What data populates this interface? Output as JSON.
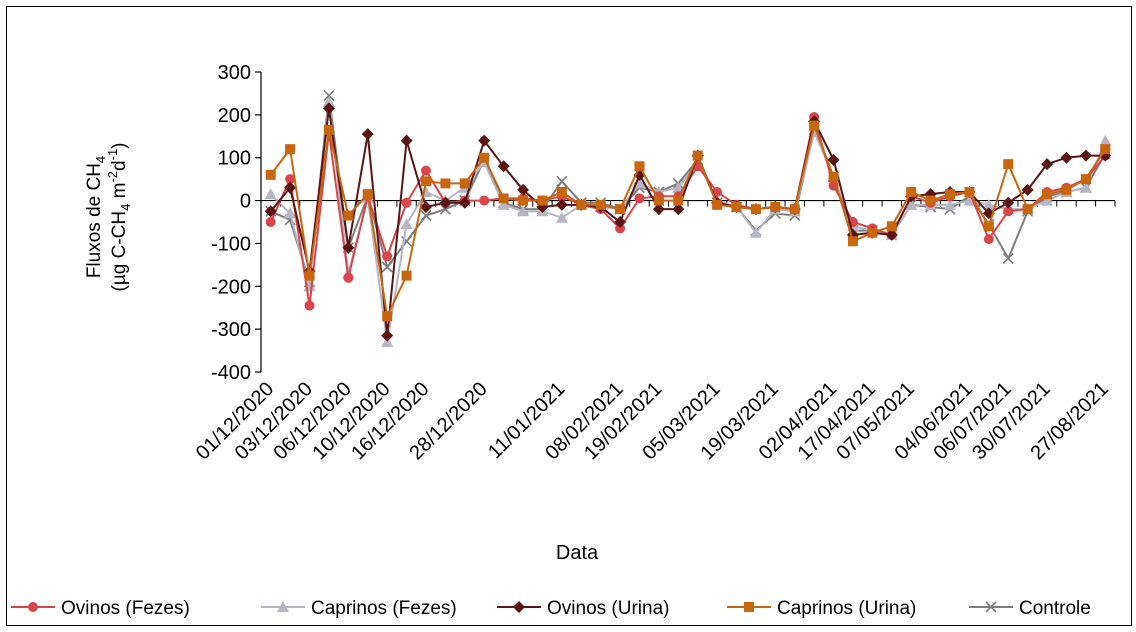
{
  "chart_data": {
    "type": "line",
    "title": "",
    "ylabel_line1": "Fluxos de CH",
    "ylabel_line1_sub": "4",
    "ylabel_line2_a": "(µg C-CH",
    "ylabel_line2_sub": "4",
    "ylabel_line2_b": " m",
    "ylabel_line2_sup1": "-2",
    "ylabel_line2_c": "d",
    "ylabel_line2_sup2": "-1",
    "ylabel_line2_d": ")",
    "xlabel": "Data",
    "ylim": [
      -400,
      300
    ],
    "yticks": [
      "300",
      "200",
      "100",
      "0",
      "-100",
      "-200",
      "-300",
      "-400"
    ],
    "n_points": 44,
    "xtick_labels": [
      "01/12/2020",
      "03/12/2020",
      "06/12/2020",
      "10/12/2020",
      "16/12/2020",
      "28/12/2020",
      "11/01/2021",
      "08/02/2021",
      "19/02/2021",
      "05/03/2021",
      "19/03/2021",
      "02/04/2021",
      "17/04/2021",
      "07/05/2021",
      "04/06/2021",
      "06/07/2021",
      "30/07/2021",
      "27/08/2021"
    ],
    "xtick_positions": [
      0,
      2,
      4,
      6,
      8,
      11,
      15,
      18,
      20,
      23,
      26,
      29,
      31,
      33,
      36,
      38,
      40,
      43
    ],
    "legend_position": "bottom",
    "series": [
      {
        "name": "Ovinos (Fezes)",
        "color": "#d9454a",
        "marker": "circle",
        "values": [
          -50,
          50,
          -245,
          160,
          -180,
          10,
          -130,
          -5,
          70,
          -5,
          0,
          0,
          5,
          5,
          0,
          10,
          -10,
          -20,
          -65,
          5,
          10,
          10,
          80,
          20,
          -10,
          -20,
          -15,
          -20,
          195,
          35,
          -50,
          -65,
          -80,
          10,
          -5,
          10,
          20,
          -90,
          -25,
          -20,
          20,
          30,
          50,
          105
        ]
      },
      {
        "name": "Caprinos (Fezes)",
        "color": "#b4b6c4",
        "marker": "triangle",
        "values": [
          15,
          -30,
          -200,
          230,
          -170,
          5,
          -330,
          -55,
          20,
          0,
          30,
          90,
          -10,
          -25,
          -25,
          -40,
          -10,
          -15,
          -20,
          40,
          20,
          30,
          90,
          0,
          -15,
          -75,
          -20,
          -25,
          160,
          55,
          -60,
          -70,
          -80,
          -10,
          -10,
          -10,
          0,
          -10,
          -20,
          -20,
          0,
          20,
          30,
          140
        ]
      },
      {
        "name": "Ovinos (Urina)",
        "color": "#5a1414",
        "marker": "diamond",
        "values": [
          -25,
          30,
          -165,
          215,
          -110,
          155,
          -315,
          140,
          -15,
          -5,
          -5,
          140,
          80,
          25,
          -15,
          -10,
          -10,
          -15,
          -50,
          60,
          -20,
          -20,
          105,
          -5,
          -15,
          -20,
          -15,
          -20,
          185,
          95,
          -80,
          -75,
          -80,
          10,
          15,
          20,
          20,
          -30,
          -5,
          25,
          85,
          100,
          105,
          105
        ]
      },
      {
        "name": "Caprinos (Urina)",
        "color": "#c8650f",
        "marker": "square",
        "values": [
          60,
          120,
          -175,
          165,
          -35,
          15,
          -270,
          -175,
          45,
          40,
          40,
          100,
          5,
          0,
          0,
          20,
          -10,
          -10,
          -20,
          80,
          0,
          0,
          105,
          -10,
          -15,
          -20,
          -15,
          -20,
          175,
          55,
          -95,
          -75,
          -60,
          20,
          0,
          15,
          20,
          -60,
          85,
          -20,
          15,
          25,
          50,
          120
        ]
      },
      {
        "name": "Controle",
        "color": "#7d7d7d",
        "marker": "x",
        "values": [
          -25,
          -45,
          -190,
          245,
          -110,
          10,
          -155,
          -95,
          -35,
          -20,
          0,
          95,
          -5,
          -20,
          -20,
          45,
          -5,
          -5,
          -20,
          30,
          20,
          40,
          95,
          -5,
          -15,
          -70,
          -30,
          -35,
          165,
          55,
          -70,
          -70,
          -80,
          -10,
          -15,
          -20,
          10,
          -55,
          -135,
          -25,
          10,
          20,
          30,
          110
        ]
      }
    ]
  }
}
